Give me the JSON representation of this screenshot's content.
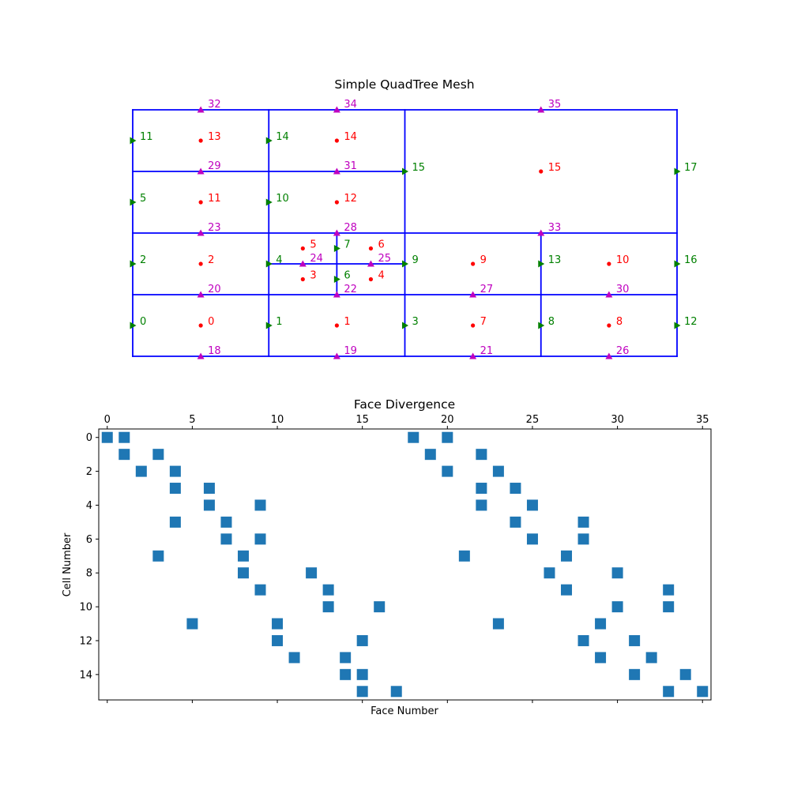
{
  "chart_data": [
    {
      "type": "mesh",
      "title": "Simple QuadTree Mesh",
      "domain": {
        "x": [
          0,
          4
        ],
        "y": [
          0,
          2
        ]
      },
      "grid_lines": [
        [
          [
            0,
            0
          ],
          [
            4,
            0
          ]
        ],
        [
          [
            0,
            2
          ],
          [
            4,
            2
          ]
        ],
        [
          [
            0,
            0
          ],
          [
            0,
            2
          ]
        ],
        [
          [
            4,
            0
          ],
          [
            4,
            2
          ]
        ],
        [
          [
            0,
            1
          ],
          [
            4,
            1
          ]
        ],
        [
          [
            2,
            0
          ],
          [
            2,
            2
          ]
        ],
        [
          [
            0,
            0.5
          ],
          [
            4,
            0.5
          ]
        ],
        [
          [
            1,
            0
          ],
          [
            1,
            2
          ]
        ],
        [
          [
            3,
            0
          ],
          [
            3,
            1
          ]
        ],
        [
          [
            0,
            1.5
          ],
          [
            2,
            1.5
          ]
        ],
        [
          [
            1,
            0.75
          ],
          [
            2,
            0.75
          ]
        ],
        [
          [
            1.5,
            0.5
          ],
          [
            1.5,
            1
          ]
        ]
      ],
      "cell_centers": [
        {
          "label": "0",
          "x": 0.5,
          "y": 0.25
        },
        {
          "label": "1",
          "x": 1.5,
          "y": 0.25
        },
        {
          "label": "2",
          "x": 0.5,
          "y": 0.75
        },
        {
          "label": "3",
          "x": 1.25,
          "y": 0.625
        },
        {
          "label": "4",
          "x": 1.75,
          "y": 0.625
        },
        {
          "label": "5",
          "x": 1.25,
          "y": 0.875
        },
        {
          "label": "6",
          "x": 1.75,
          "y": 0.875
        },
        {
          "label": "7",
          "x": 2.5,
          "y": 0.25
        },
        {
          "label": "8",
          "x": 3.5,
          "y": 0.25
        },
        {
          "label": "9",
          "x": 2.5,
          "y": 0.75
        },
        {
          "label": "10",
          "x": 3.5,
          "y": 0.75
        },
        {
          "label": "11",
          "x": 0.5,
          "y": 1.25
        },
        {
          "label": "12",
          "x": 1.5,
          "y": 1.25
        },
        {
          "label": "13",
          "x": 0.5,
          "y": 1.75
        },
        {
          "label": "14",
          "x": 1.5,
          "y": 1.75
        },
        {
          "label": "15",
          "x": 3.0,
          "y": 1.5
        }
      ],
      "x_faces": [
        {
          "label": "0",
          "x": 0,
          "y": 0.25
        },
        {
          "label": "1",
          "x": 1,
          "y": 0.25
        },
        {
          "label": "2",
          "x": 0,
          "y": 0.75
        },
        {
          "label": "3",
          "x": 2,
          "y": 0.25
        },
        {
          "label": "4",
          "x": 1,
          "y": 0.75
        },
        {
          "label": "5",
          "x": 0,
          "y": 1.25
        },
        {
          "label": "6",
          "x": 1.5,
          "y": 0.625
        },
        {
          "label": "7",
          "x": 1.5,
          "y": 0.875
        },
        {
          "label": "8",
          "x": 3,
          "y": 0.25
        },
        {
          "label": "9",
          "x": 2,
          "y": 0.75
        },
        {
          "label": "10",
          "x": 1,
          "y": 1.25
        },
        {
          "label": "11",
          "x": 0,
          "y": 1.75
        },
        {
          "label": "12",
          "x": 4,
          "y": 0.25
        },
        {
          "label": "13",
          "x": 3,
          "y": 0.75
        },
        {
          "label": "14",
          "x": 1,
          "y": 1.75
        },
        {
          "label": "15",
          "x": 2,
          "y": 1.5
        },
        {
          "label": "16",
          "x": 4,
          "y": 0.75
        },
        {
          "label": "17",
          "x": 4,
          "y": 1.5
        }
      ],
      "y_faces": [
        {
          "label": "18",
          "x": 0.5,
          "y": 0
        },
        {
          "label": "19",
          "x": 1.5,
          "y": 0
        },
        {
          "label": "20",
          "x": 0.5,
          "y": 0.5
        },
        {
          "label": "21",
          "x": 2.5,
          "y": 0
        },
        {
          "label": "22",
          "x": 1.5,
          "y": 0.5
        },
        {
          "label": "23",
          "x": 0.5,
          "y": 1
        },
        {
          "label": "24",
          "x": 1.25,
          "y": 0.75
        },
        {
          "label": "25",
          "x": 1.75,
          "y": 0.75
        },
        {
          "label": "26",
          "x": 3.5,
          "y": 0
        },
        {
          "label": "27",
          "x": 2.5,
          "y": 0.5
        },
        {
          "label": "28",
          "x": 1.5,
          "y": 1
        },
        {
          "label": "29",
          "x": 0.5,
          "y": 1.5
        },
        {
          "label": "30",
          "x": 3.5,
          "y": 0.5
        },
        {
          "label": "31",
          "x": 1.5,
          "y": 1.5
        },
        {
          "label": "32",
          "x": 0.5,
          "y": 2
        },
        {
          "label": "33",
          "x": 3,
          "y": 1
        },
        {
          "label": "34",
          "x": 1.5,
          "y": 2
        },
        {
          "label": "35",
          "x": 3,
          "y": 2
        }
      ],
      "colors": {
        "grid": "#0000ff",
        "cell_centers": "#ff0000",
        "x_faces": "#008000",
        "y_faces": "#bf00bf"
      }
    },
    {
      "type": "spy",
      "title": "Face Divergence",
      "xlabel": "Face Number",
      "ylabel": "Cell Number",
      "xlim": [
        0,
        35
      ],
      "ylim": [
        0,
        15
      ],
      "xticks": [
        0,
        5,
        10,
        15,
        20,
        25,
        30,
        35
      ],
      "yticks": [
        0,
        2,
        4,
        6,
        8,
        10,
        12,
        14
      ],
      "color": "#1f77b4",
      "nonzeros": [
        {
          "row": 0,
          "cols": [
            0,
            1,
            18,
            20
          ]
        },
        {
          "row": 1,
          "cols": [
            1,
            3,
            19,
            22
          ]
        },
        {
          "row": 2,
          "cols": [
            2,
            4,
            20,
            23
          ]
        },
        {
          "row": 3,
          "cols": [
            4,
            6,
            22,
            24
          ]
        },
        {
          "row": 4,
          "cols": [
            6,
            9,
            22,
            25
          ]
        },
        {
          "row": 5,
          "cols": [
            4,
            7,
            24,
            28
          ]
        },
        {
          "row": 6,
          "cols": [
            7,
            9,
            25,
            28
          ]
        },
        {
          "row": 7,
          "cols": [
            3,
            8,
            21,
            27
          ]
        },
        {
          "row": 8,
          "cols": [
            8,
            12,
            26,
            30
          ]
        },
        {
          "row": 9,
          "cols": [
            9,
            13,
            27,
            33
          ]
        },
        {
          "row": 10,
          "cols": [
            13,
            16,
            30,
            33
          ]
        },
        {
          "row": 11,
          "cols": [
            5,
            10,
            23,
            29
          ]
        },
        {
          "row": 12,
          "cols": [
            10,
            15,
            28,
            31
          ]
        },
        {
          "row": 13,
          "cols": [
            11,
            14,
            29,
            32
          ]
        },
        {
          "row": 14,
          "cols": [
            14,
            15,
            31,
            34
          ]
        },
        {
          "row": 15,
          "cols": [
            15,
            17,
            33,
            35
          ]
        }
      ]
    }
  ]
}
